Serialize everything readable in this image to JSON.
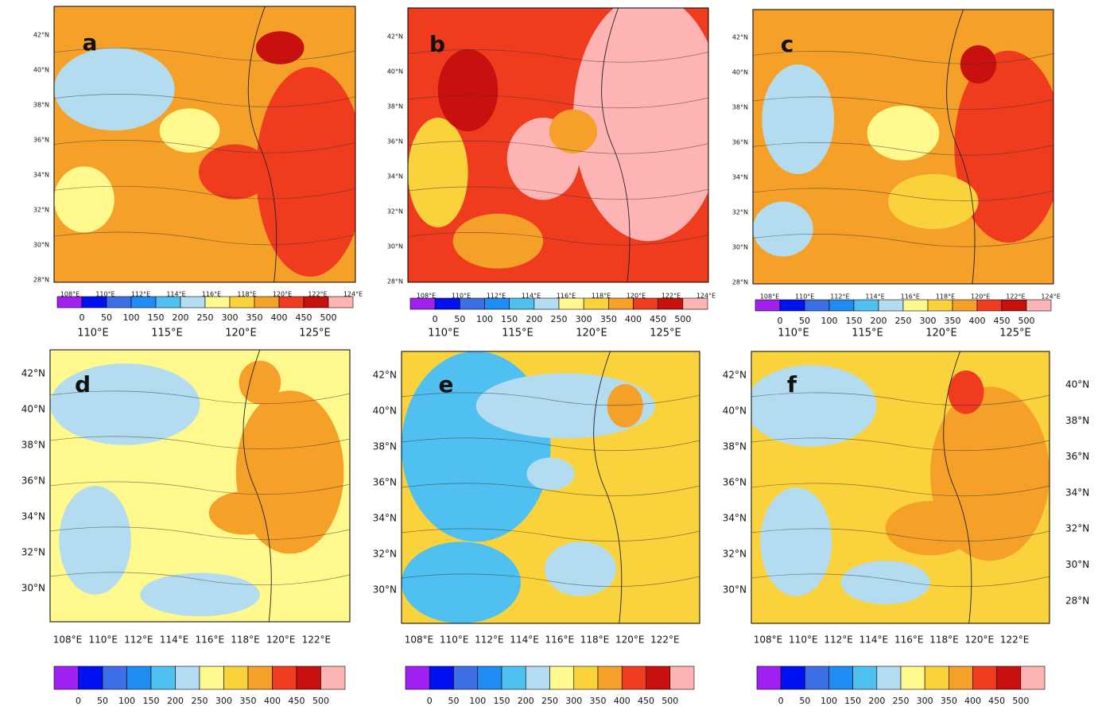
{
  "colorbar": {
    "colors": [
      "#a020f0",
      "#0010f0",
      "#3c6ee6",
      "#1e8cf0",
      "#50c0f0",
      "#b4dcf0",
      "#fff88c",
      "#fad23c",
      "#f5a028",
      "#f03c1e",
      "#c8100f",
      "#ffb4b4"
    ],
    "labels": [
      "0",
      "50",
      "100",
      "150",
      "200",
      "250",
      "300",
      "350",
      "400",
      "450",
      "500"
    ]
  },
  "panels": [
    {
      "letter": "a",
      "lat_labels": [
        "42°N",
        "40°N",
        "38°N",
        "36°N",
        "34°N",
        "32°N",
        "30°N",
        "28°N"
      ],
      "lon_labels": [
        "108°E",
        "110°E",
        "112°E",
        "114°E",
        "116°E",
        "118°E",
        "120°E",
        "122°E",
        "124°E"
      ]
    },
    {
      "letter": "b",
      "lat_labels": [
        "42°N",
        "40°N",
        "38°N",
        "36°N",
        "34°N",
        "32°N",
        "30°N",
        "28°N"
      ],
      "lon_labels": [
        "108°E",
        "110°E",
        "112°E",
        "114°E",
        "116°E",
        "118°E",
        "120°E",
        "122°E",
        "124°E"
      ]
    },
    {
      "letter": "c",
      "lat_labels": [
        "42°N",
        "40°N",
        "38°N",
        "36°N",
        "34°N",
        "32°N",
        "30°N",
        "28°N"
      ],
      "lon_labels": [
        "108°E",
        "110°E",
        "112°E",
        "114°E",
        "116°E",
        "118°E",
        "120°E",
        "122°E",
        "124°E"
      ]
    },
    {
      "letter": "d",
      "top_lon_labels": [
        "110°E",
        "115°E",
        "120°E",
        "125°E"
      ],
      "lat_labels": [
        "42°N",
        "40°N",
        "38°N",
        "36°N",
        "34°N",
        "32°N",
        "30°N"
      ],
      "lon_labels": [
        "108°E",
        "110°E",
        "112°E",
        "114°E",
        "116°E",
        "118°E",
        "120°E",
        "122°E"
      ]
    },
    {
      "letter": "e",
      "top_lon_labels": [
        "110°E",
        "115°E",
        "120°E",
        "125°E"
      ],
      "lat_labels": [
        "42°N",
        "40°N",
        "38°N",
        "36°N",
        "34°N",
        "32°N",
        "30°N"
      ],
      "lon_labels": [
        "108°E",
        "110°E",
        "112°E",
        "114°E",
        "116°E",
        "118°E",
        "120°E",
        "122°E"
      ]
    },
    {
      "letter": "f",
      "top_lon_labels": [
        "110°E",
        "115°E",
        "120°E",
        "125°E"
      ],
      "lat_labels": [
        "42°N",
        "40°N",
        "38°N",
        "36°N",
        "34°N",
        "32°N",
        "30°N"
      ],
      "right_lat_labels": [
        "40°N",
        "38°N",
        "36°N",
        "34°N",
        "32°N",
        "30°N",
        "28°N"
      ],
      "lon_labels": [
        "108°E",
        "110°E",
        "112°E",
        "114°E",
        "116°E",
        "118°E",
        "120°E",
        "122°E"
      ]
    }
  ]
}
